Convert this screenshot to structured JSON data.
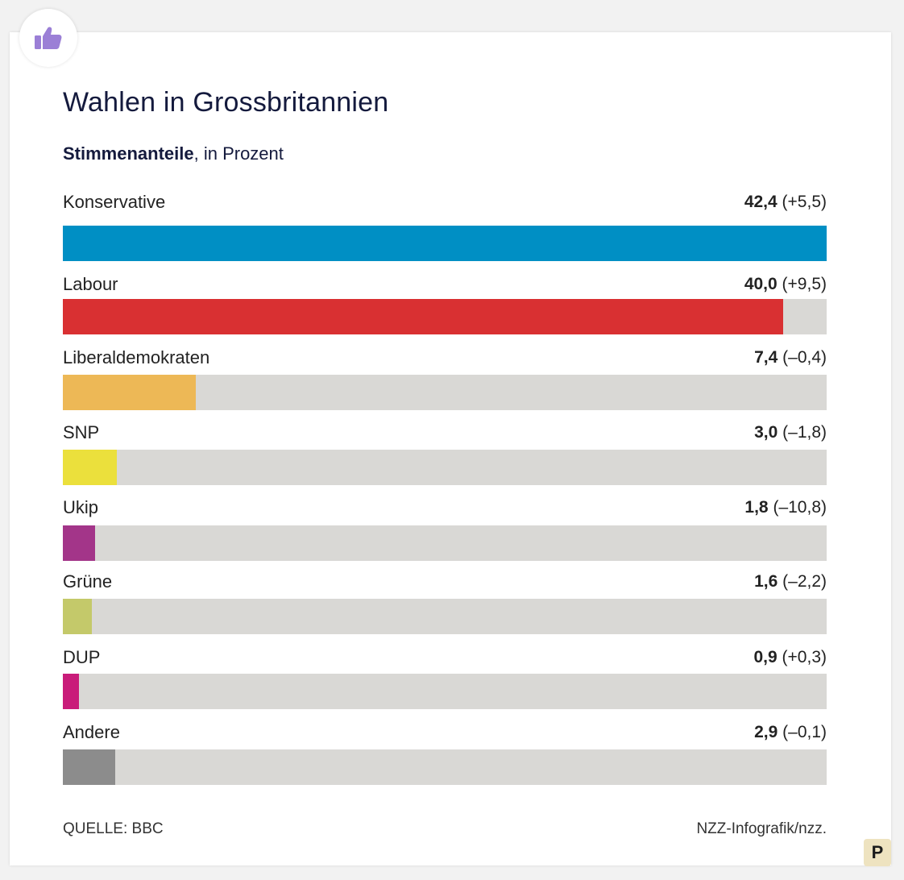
{
  "header": {
    "title": "Wahlen in Grossbritannien",
    "subtitle_strong": "Stimmenanteile",
    "subtitle_rest": ", in Prozent"
  },
  "footer": {
    "source": "QUELLE: BBC",
    "credit": "NZZ-Infografik/nzz.",
    "logo_letter": "P"
  },
  "icons": {
    "badge": "thumbs-up-icon",
    "badge_color": "#9b7fd6"
  },
  "chart_data": {
    "type": "bar",
    "orientation": "horizontal",
    "title": "Wahlen in Grossbritannien",
    "subtitle": "Stimmenanteile, in Prozent",
    "xlim": [
      0,
      42.4
    ],
    "categories": [
      "Konservative",
      "Labour",
      "Liberaldemokraten",
      "SNP",
      "Ukip",
      "Grüne",
      "DUP",
      "Andere"
    ],
    "values": [
      42.4,
      40.0,
      7.4,
      3.0,
      1.8,
      1.6,
      0.9,
      2.9
    ],
    "value_labels": [
      "42,4",
      "40,0",
      "7,4",
      "3,0",
      "1,8",
      "1,6",
      "0,9",
      "2,9"
    ],
    "change_labels": [
      "(+5,5)",
      "(+9,5)",
      "(–0,4)",
      "(–1,8)",
      "(–10,8)",
      "(–2,2)",
      "(+0,3)",
      "(–0,1)"
    ],
    "colors": [
      "#008fc4",
      "#d93032",
      "#edb856",
      "#ebe03c",
      "#a33589",
      "#c4c96a",
      "#c91c7a",
      "#8c8c8c"
    ],
    "track_color": "#d9d8d5"
  }
}
